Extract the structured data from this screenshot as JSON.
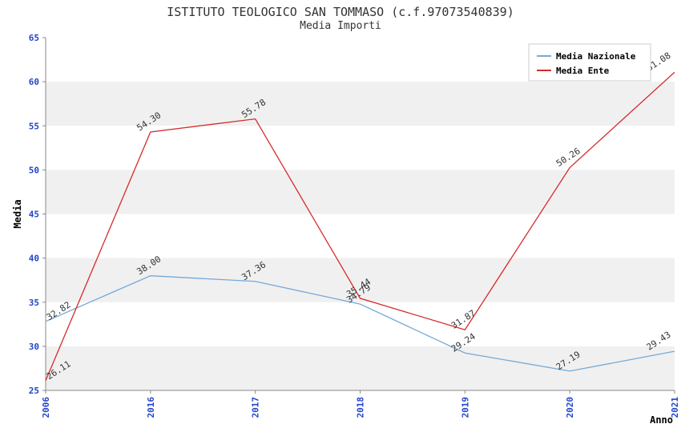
{
  "chart_data": {
    "type": "line",
    "title": "ISTITUTO TEOLOGICO SAN TOMMASO (c.f.97073540839)",
    "subtitle": "Media Importi",
    "xlabel": "Anno",
    "ylabel": "Media",
    "categories": [
      "2006",
      "2016",
      "2017",
      "2018",
      "2019",
      "2020",
      "2021"
    ],
    "series": [
      {
        "name": "Media Nazionale",
        "color": "#74a9d8",
        "values": [
          32.82,
          38.0,
          37.36,
          34.79,
          29.24,
          27.19,
          29.43
        ]
      },
      {
        "name": "Media Ente",
        "color": "#d62b2b",
        "values": [
          26.11,
          54.3,
          55.78,
          35.44,
          31.87,
          50.26,
          61.08
        ]
      }
    ],
    "ylim": [
      25,
      65
    ],
    "ytick_step": 5,
    "legend_position": "top-right",
    "grid": "banded",
    "colors": {
      "band": "#f0f0f0",
      "axis_tick_label": "#2244cc",
      "data_label": "#333333",
      "axis_line": "#888888",
      "legend_border": "#cccccc",
      "legend_bg": "#ffffff",
      "legend_text": "#000000",
      "axis_title": "#000000",
      "title": "#333333"
    }
  }
}
